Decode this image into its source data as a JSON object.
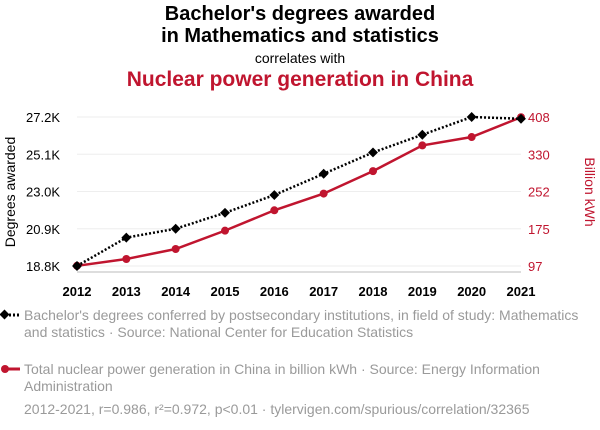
{
  "title_line1": "Bachelor's degrees awarded",
  "title_line2": "in Mathematics and statistics",
  "subtitle": "correlates with",
  "title2": "Nuclear power generation in China",
  "colors": {
    "series1": "#000000",
    "series2": "#c0152f",
    "legend_text": "#9a9a9a"
  },
  "chart_data": {
    "type": "line",
    "x": [
      2012,
      2013,
      2014,
      2015,
      2016,
      2017,
      2018,
      2019,
      2020,
      2021
    ],
    "xticks": [
      "2012",
      "2013",
      "2014",
      "2015",
      "2016",
      "2017",
      "2018",
      "2019",
      "2020",
      "2021"
    ],
    "ylabel_left": "Degrees awarded",
    "ylabel_right": "Billion kWh",
    "ylim_left": [
      18.8,
      27.2
    ],
    "ylim_right": [
      97,
      408
    ],
    "yticks_left": [
      "18.8K",
      "20.9K",
      "23.0K",
      "25.1K",
      "27.2K"
    ],
    "yticks_right": [
      "97",
      "175",
      "252",
      "330",
      "408"
    ],
    "grid": true,
    "series": [
      {
        "name": "Bachelor's degrees (thousands)",
        "axis": "left",
        "style": "dotted",
        "marker": "diamond",
        "values": [
          18.8,
          20.4,
          20.9,
          21.8,
          22.8,
          24.0,
          25.2,
          26.2,
          27.2,
          27.1
        ]
      },
      {
        "name": "Nuclear power generation in China (billion kWh)",
        "axis": "right",
        "style": "solid",
        "marker": "circle",
        "values": [
          97.4,
          111.6,
          132.5,
          170.8,
          213.3,
          248.1,
          295.0,
          348.7,
          366.2,
          407.5
        ]
      }
    ]
  },
  "legend": [
    "Bachelor's degrees conferred by postsecondary institutions, in field of study: Mathematics and statistics · Source: National Center for Education Statistics",
    "Total nuclear power generation in China in billion kWh · Source: Energy Information Administration"
  ],
  "footer": "2012-2021, r=0.986, r²=0.972, p<0.01 · tylervigen.com/spurious/correlation/32365"
}
